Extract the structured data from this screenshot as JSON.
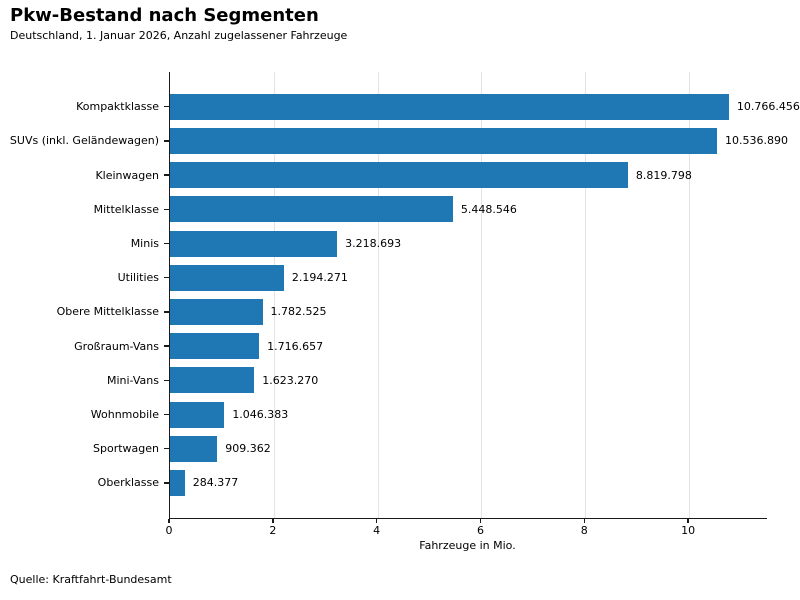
{
  "header": {
    "title": "Pkw-Bestand nach Segmenten",
    "subtitle": "Deutschland, 1. Januar 2026, Anzahl zugelassener Fahrzeuge"
  },
  "footer": {
    "source": "Quelle: Kraftfahrt-Bundesamt"
  },
  "chart_data": {
    "type": "bar",
    "orientation": "horizontal",
    "title": "Pkw-Bestand nach Segmenten",
    "subtitle": "Deutschland, 1. Januar 2026, Anzahl zugelassener Fahrzeuge",
    "categories": [
      "Kompaktklasse",
      "SUVs (inkl. Geländewagen)",
      "Kleinwagen",
      "Mittelklasse",
      "Minis",
      "Utilities",
      "Obere Mittelklasse",
      "Großraum-Vans",
      "Mini-Vans",
      "Wohnmobile",
      "Sportwagen",
      "Oberklasse"
    ],
    "values": [
      10.766456,
      10.53689,
      8.819798,
      5.448546,
      3.218693,
      2.194271,
      1.782525,
      1.716657,
      1.62327,
      1.046383,
      0.909362,
      0.284377
    ],
    "value_labels": [
      "10.766.456",
      "10.536.890",
      "8.819.798",
      "5.448.546",
      "3.218.693",
      "2.194.271",
      "1.782.525",
      "1.716.657",
      "1.623.270",
      "1.046.383",
      "909.362",
      "284.377"
    ],
    "xlabel": "Fahrzeuge in Mio.",
    "ylabel": "",
    "xlim": [
      0,
      11.5
    ],
    "xticks": [
      0,
      2,
      4,
      6,
      8,
      10
    ],
    "grid": true,
    "legend": false,
    "bar_color": "#1f77b4",
    "source": "Quelle: Kraftfahrt-Bundesamt"
  }
}
